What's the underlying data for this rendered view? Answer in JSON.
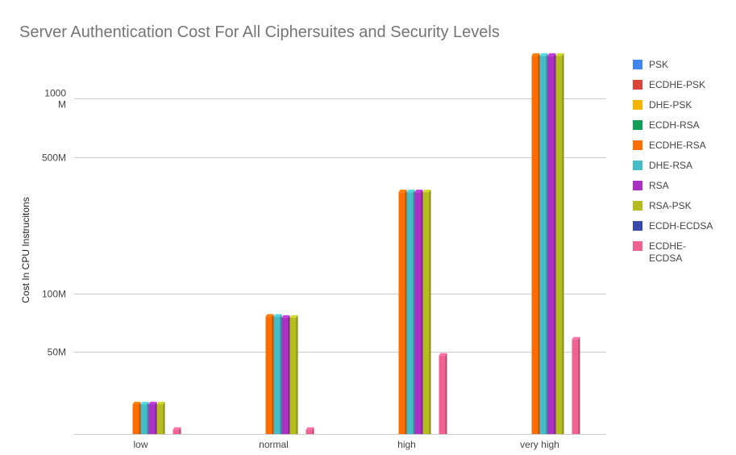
{
  "chart_data": {
    "type": "bar",
    "title": "Server Authentication Cost For All Ciphersuites and Security Levels",
    "xlabel": "",
    "ylabel": "Cost In CPU Instrucitons",
    "y_scale": "log",
    "ylim": [
      19000000,
      1800000000
    ],
    "y_ticks": [
      {
        "value": 50000000,
        "label": "50M"
      },
      {
        "value": 100000000,
        "label": "100M"
      },
      {
        "value": 500000000,
        "label": "500M"
      },
      {
        "value": 1000000000,
        "label": "1000\nM"
      }
    ],
    "categories": [
      "low",
      "normal",
      "high",
      "very high"
    ],
    "series": [
      {
        "name": "PSK",
        "color": "#4285F4",
        "values": [
          null,
          null,
          null,
          null
        ]
      },
      {
        "name": "ECDHE-PSK",
        "color": "#DB4437",
        "values": [
          null,
          null,
          null,
          null
        ]
      },
      {
        "name": "DHE-PSK",
        "color": "#F4B400",
        "values": [
          null,
          null,
          null,
          null
        ]
      },
      {
        "name": "ECDH-RSA",
        "color": "#0F9D58",
        "values": [
          null,
          null,
          null,
          null
        ]
      },
      {
        "name": "ECDHE-RSA",
        "color": "#FF6D00",
        "values": [
          27000000,
          76000000,
          330000000,
          1650000000
        ]
      },
      {
        "name": "DHE-RSA",
        "color": "#46BDC6",
        "values": [
          27000000,
          76000000,
          330000000,
          1650000000
        ]
      },
      {
        "name": "RSA",
        "color": "#AB30C4",
        "values": [
          27000000,
          75000000,
          330000000,
          1650000000
        ]
      },
      {
        "name": "RSA-PSK",
        "color": "#B5BD1E",
        "values": [
          27000000,
          75000000,
          330000000,
          1650000000
        ]
      },
      {
        "name": "ECDH-ECDSA",
        "color": "#3949AB",
        "values": [
          null,
          null,
          null,
          null
        ]
      },
      {
        "name": "ECDHE-ECDSA",
        "color": "#F06292",
        "values": [
          20000000,
          20000000,
          48000000,
          58000000
        ]
      }
    ],
    "grid": true,
    "legend_position": "right"
  }
}
